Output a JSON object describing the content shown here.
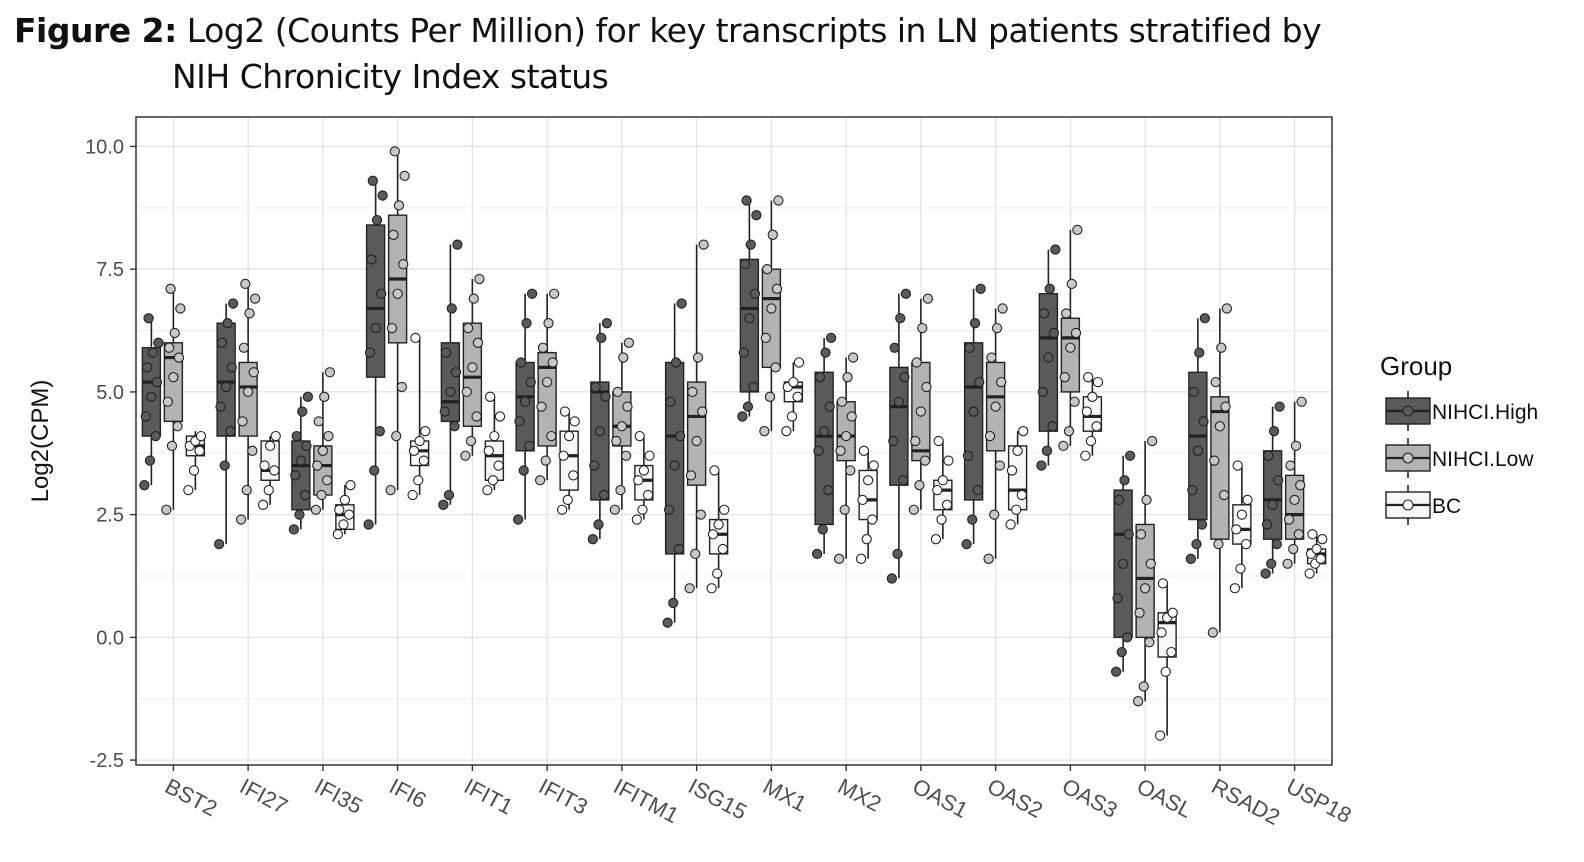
{
  "figure": {
    "label": "Figure 2:",
    "caption_line1": "Log2 (Counts Per Million) for key transcripts in LN patients stratified by",
    "caption_line2": "NIH Chronicity Index status"
  },
  "chart_data": {
    "type": "boxplot",
    "title": "Log2 (Counts Per Million) for key transcripts in LN patients stratified by NIH Chronicity Index status",
    "xlabel": "",
    "ylabel": "Log2(CPM)",
    "ylim": [
      -2.6,
      10.6
    ],
    "yticks": [
      -2.5,
      0.0,
      2.5,
      5.0,
      7.5,
      10.0
    ],
    "ytick_labels": [
      "-2.5",
      "0.0",
      "2.5",
      "5.0",
      "7.5",
      "10.0"
    ],
    "grid": true,
    "legend": {
      "title": "Group",
      "position": "right"
    },
    "groups": [
      {
        "name": "NIHCI.High",
        "fill": "#5a5a5a",
        "point_fill": "#5a5a5a"
      },
      {
        "name": "NIHCI.Low",
        "fill": "#b3b3b3",
        "point_fill": "#c8c8c8"
      },
      {
        "name": "BC",
        "fill": "#f7f7f7",
        "point_fill": "#ffffff"
      }
    ],
    "categories": [
      "BST2",
      "IFI27",
      "IFI35",
      "IFI6",
      "IFIT1",
      "IFIT3",
      "IFITM1",
      "ISG15",
      "MX1",
      "MX2",
      "OAS1",
      "OAS2",
      "OAS3",
      "OASL",
      "RSAD2",
      "USP18"
    ],
    "series": [
      {
        "name": "NIHCI.High",
        "boxes": [
          {
            "min": 3.1,
            "q1": 4.1,
            "median": 5.2,
            "q3": 5.9,
            "max": 6.5,
            "points": [
              3.1,
              3.6,
              4.1,
              4.5,
              4.9,
              5.2,
              5.5,
              5.8,
              6.0,
              6.5
            ]
          },
          {
            "min": 1.9,
            "q1": 4.1,
            "median": 5.2,
            "q3": 6.4,
            "max": 6.8,
            "points": [
              1.9,
              3.5,
              4.2,
              4.7,
              5.1,
              5.5,
              6.0,
              6.4,
              6.8
            ]
          },
          {
            "min": 2.2,
            "q1": 2.6,
            "median": 3.5,
            "q3": 4.0,
            "max": 4.9,
            "points": [
              2.2,
              2.5,
              2.9,
              3.3,
              3.6,
              3.9,
              4.1,
              4.6,
              4.9
            ]
          },
          {
            "min": 2.3,
            "q1": 5.3,
            "median": 6.7,
            "q3": 8.4,
            "max": 9.3,
            "points": [
              2.3,
              3.4,
              4.2,
              5.8,
              6.3,
              7.0,
              7.7,
              8.5,
              9.0,
              9.3
            ]
          },
          {
            "min": 2.7,
            "q1": 4.4,
            "median": 4.8,
            "q3": 6.0,
            "max": 8.0,
            "points": [
              2.7,
              2.9,
              4.3,
              4.6,
              5.0,
              5.4,
              5.8,
              6.7,
              8.0
            ]
          },
          {
            "min": 2.4,
            "q1": 3.8,
            "median": 4.9,
            "q3": 5.6,
            "max": 7.0,
            "points": [
              2.4,
              3.4,
              3.9,
              4.4,
              4.8,
              5.2,
              5.6,
              6.4,
              7.0
            ]
          },
          {
            "min": 2.0,
            "q1": 2.8,
            "median": 5.0,
            "q3": 5.2,
            "max": 6.4,
            "points": [
              2.0,
              2.3,
              2.9,
              3.5,
              4.2,
              4.9,
              5.1,
              6.1,
              6.4
            ]
          },
          {
            "min": 0.3,
            "q1": 1.7,
            "median": 4.1,
            "q3": 5.6,
            "max": 6.8,
            "points": [
              0.3,
              0.7,
              1.8,
              2.6,
              3.5,
              4.1,
              4.8,
              5.6,
              6.8
            ]
          },
          {
            "min": 4.5,
            "q1": 5.0,
            "median": 6.7,
            "q3": 7.7,
            "max": 8.9,
            "points": [
              4.5,
              4.7,
              5.1,
              5.8,
              6.5,
              7.0,
              7.6,
              8.0,
              8.6,
              8.9
            ]
          },
          {
            "min": 1.7,
            "q1": 2.3,
            "median": 4.1,
            "q3": 5.4,
            "max": 6.1,
            "points": [
              1.7,
              2.2,
              3.0,
              3.8,
              4.2,
              4.7,
              5.3,
              5.8,
              6.1
            ]
          },
          {
            "min": 1.2,
            "q1": 3.1,
            "median": 4.7,
            "q3": 5.5,
            "max": 7.0,
            "points": [
              1.2,
              1.7,
              3.2,
              4.0,
              4.8,
              5.3,
              5.9,
              6.5,
              7.0
            ]
          },
          {
            "min": 1.9,
            "q1": 2.8,
            "median": 5.1,
            "q3": 6.0,
            "max": 7.1,
            "points": [
              1.9,
              2.4,
              3.0,
              3.7,
              4.6,
              5.2,
              5.9,
              6.4,
              7.1
            ]
          },
          {
            "min": 3.5,
            "q1": 4.2,
            "median": 6.1,
            "q3": 7.0,
            "max": 7.9,
            "points": [
              3.5,
              3.8,
              4.3,
              5.0,
              5.7,
              6.2,
              6.6,
              7.1,
              7.9
            ]
          },
          {
            "min": -0.7,
            "q1": 0.0,
            "median": 2.1,
            "q3": 3.0,
            "max": 3.7,
            "points": [
              -0.7,
              -0.3,
              0.0,
              0.8,
              1.5,
              2.1,
              2.8,
              3.2,
              3.7
            ]
          },
          {
            "min": 1.6,
            "q1": 2.4,
            "median": 4.1,
            "q3": 5.4,
            "max": 6.5,
            "points": [
              1.6,
              1.9,
              2.3,
              3.0,
              3.8,
              4.4,
              5.0,
              5.8,
              6.5
            ]
          },
          {
            "min": 1.3,
            "q1": 2.0,
            "median": 2.8,
            "q3": 3.8,
            "max": 4.7,
            "points": [
              1.3,
              1.5,
              1.9,
              2.3,
              2.7,
              3.2,
              3.7,
              4.2,
              4.7
            ]
          }
        ]
      },
      {
        "name": "NIHCI.Low",
        "boxes": [
          {
            "min": 2.6,
            "q1": 4.4,
            "median": 5.7,
            "q3": 6.0,
            "max": 7.1,
            "points": [
              2.6,
              3.9,
              4.3,
              4.8,
              5.3,
              5.7,
              5.9,
              6.2,
              6.7,
              7.1
            ]
          },
          {
            "min": 2.4,
            "q1": 4.1,
            "median": 5.1,
            "q3": 5.6,
            "max": 7.2,
            "points": [
              2.4,
              3.0,
              3.8,
              4.4,
              5.0,
              5.4,
              5.9,
              6.6,
              6.9,
              7.2
            ]
          },
          {
            "min": 2.6,
            "q1": 2.9,
            "median": 3.5,
            "q3": 3.9,
            "max": 5.4,
            "points": [
              2.6,
              2.9,
              3.2,
              3.5,
              3.8,
              4.1,
              4.4,
              4.9,
              5.4
            ]
          },
          {
            "min": 3.0,
            "q1": 6.0,
            "median": 7.3,
            "q3": 8.6,
            "max": 9.9,
            "points": [
              3.0,
              4.1,
              5.1,
              6.3,
              7.0,
              7.6,
              8.2,
              8.8,
              9.4,
              9.9
            ]
          },
          {
            "min": 3.7,
            "q1": 4.3,
            "median": 5.3,
            "q3": 6.4,
            "max": 7.3,
            "points": [
              3.7,
              4.0,
              4.5,
              5.0,
              5.5,
              6.0,
              6.3,
              6.9,
              7.3
            ]
          },
          {
            "min": 3.2,
            "q1": 3.9,
            "median": 5.5,
            "q3": 5.8,
            "max": 7.0,
            "points": [
              3.2,
              3.6,
              4.1,
              4.7,
              5.2,
              5.6,
              5.9,
              6.4,
              7.0
            ]
          },
          {
            "min": 2.6,
            "q1": 3.9,
            "median": 4.3,
            "q3": 5.0,
            "max": 6.0,
            "points": [
              2.6,
              3.0,
              3.7,
              4.0,
              4.3,
              4.7,
              5.0,
              5.7,
              6.0
            ]
          },
          {
            "min": 1.0,
            "q1": 3.1,
            "median": 4.5,
            "q3": 5.2,
            "max": 8.0,
            "points": [
              1.0,
              1.7,
              2.5,
              3.3,
              4.0,
              4.6,
              5.0,
              5.7,
              8.0
            ]
          },
          {
            "min": 4.2,
            "q1": 5.5,
            "median": 6.9,
            "q3": 7.5,
            "max": 8.9,
            "points": [
              4.2,
              4.9,
              5.5,
              6.1,
              6.7,
              7.1,
              7.5,
              8.2,
              8.9
            ]
          },
          {
            "min": 1.6,
            "q1": 3.6,
            "median": 4.1,
            "q3": 4.8,
            "max": 5.7,
            "points": [
              1.6,
              2.6,
              3.4,
              3.8,
              4.1,
              4.5,
              4.8,
              5.3,
              5.7
            ]
          },
          {
            "min": 2.6,
            "q1": 3.6,
            "median": 3.8,
            "q3": 5.6,
            "max": 6.9,
            "points": [
              2.6,
              3.1,
              3.6,
              4.0,
              4.6,
              5.1,
              5.6,
              6.3,
              6.9
            ]
          },
          {
            "min": 1.6,
            "q1": 3.8,
            "median": 4.9,
            "q3": 5.6,
            "max": 6.7,
            "points": [
              1.6,
              2.5,
              3.5,
              4.1,
              4.7,
              5.2,
              5.7,
              6.3,
              6.7
            ]
          },
          {
            "min": 3.9,
            "q1": 5.0,
            "median": 6.1,
            "q3": 6.5,
            "max": 8.3,
            "points": [
              3.9,
              4.2,
              4.8,
              5.3,
              5.9,
              6.2,
              6.6,
              7.2,
              8.3
            ]
          },
          {
            "min": -1.3,
            "q1": 0.0,
            "median": 1.2,
            "q3": 2.3,
            "max": 4.0,
            "points": [
              -1.3,
              -1.0,
              -0.1,
              0.5,
              1.0,
              1.5,
              2.1,
              2.8,
              4.0
            ]
          },
          {
            "min": 0.1,
            "q1": 2.0,
            "median": 4.6,
            "q3": 4.9,
            "max": 6.7,
            "points": [
              0.1,
              1.9,
              2.9,
              3.6,
              4.3,
              4.7,
              5.2,
              5.9,
              6.7
            ]
          },
          {
            "min": 1.5,
            "q1": 2.0,
            "median": 2.5,
            "q3": 3.3,
            "max": 4.8,
            "points": [
              1.5,
              1.8,
              2.1,
              2.4,
              2.8,
              3.1,
              3.5,
              3.9,
              4.8
            ]
          }
        ]
      },
      {
        "name": "BC",
        "boxes": [
          {
            "min": 3.0,
            "q1": 3.7,
            "median": 3.9,
            "q3": 4.1,
            "max": 4.2,
            "points": [
              3.0,
              3.4,
              3.8,
              3.9,
              4.0,
              4.1
            ]
          },
          {
            "min": 2.7,
            "q1": 3.2,
            "median": 3.4,
            "q3": 4.0,
            "max": 4.1,
            "points": [
              2.7,
              3.0,
              3.4,
              3.5,
              3.9,
              4.1
            ]
          },
          {
            "min": 2.1,
            "q1": 2.2,
            "median": 2.5,
            "q3": 2.7,
            "max": 3.1,
            "points": [
              2.1,
              2.3,
              2.5,
              2.6,
              2.8,
              3.1
            ]
          },
          {
            "min": 2.9,
            "q1": 3.5,
            "median": 3.8,
            "q3": 4.0,
            "max": 6.1,
            "points": [
              2.9,
              3.2,
              3.6,
              3.8,
              4.0,
              4.2,
              6.1
            ]
          },
          {
            "min": 3.0,
            "q1": 3.2,
            "median": 3.7,
            "q3": 4.0,
            "max": 4.9,
            "points": [
              3.0,
              3.2,
              3.5,
              3.8,
              4.1,
              4.5,
              4.9
            ]
          },
          {
            "min": 2.6,
            "q1": 3.0,
            "median": 3.7,
            "q3": 4.2,
            "max": 4.6,
            "points": [
              2.6,
              2.8,
              3.3,
              3.7,
              4.1,
              4.4,
              4.6
            ]
          },
          {
            "min": 2.4,
            "q1": 2.8,
            "median": 3.2,
            "q3": 3.5,
            "max": 4.1,
            "points": [
              2.4,
              2.6,
              2.9,
              3.2,
              3.4,
              3.7,
              4.1
            ]
          },
          {
            "min": 1.0,
            "q1": 1.7,
            "median": 2.1,
            "q3": 2.4,
            "max": 3.4,
            "points": [
              1.0,
              1.3,
              1.8,
              2.1,
              2.3,
              2.6,
              3.4
            ]
          },
          {
            "min": 4.2,
            "q1": 4.8,
            "median": 5.1,
            "q3": 5.2,
            "max": 5.6,
            "points": [
              4.2,
              4.5,
              4.9,
              5.1,
              5.2,
              5.6
            ]
          },
          {
            "min": 1.6,
            "q1": 2.4,
            "median": 2.8,
            "q3": 3.4,
            "max": 3.8,
            "points": [
              1.6,
              2.0,
              2.4,
              2.8,
              3.2,
              3.5,
              3.8
            ]
          },
          {
            "min": 2.0,
            "q1": 2.6,
            "median": 3.0,
            "q3": 3.2,
            "max": 4.0,
            "points": [
              2.0,
              2.4,
              2.7,
              3.0,
              3.2,
              3.6,
              4.0
            ]
          },
          {
            "min": 2.3,
            "q1": 2.6,
            "median": 3.0,
            "q3": 3.9,
            "max": 4.2,
            "points": [
              2.3,
              2.6,
              2.9,
              3.4,
              3.8,
              4.2
            ]
          },
          {
            "min": 3.7,
            "q1": 4.2,
            "median": 4.5,
            "q3": 4.9,
            "max": 5.3,
            "points": [
              3.7,
              4.0,
              4.3,
              4.6,
              4.9,
              5.2,
              5.3
            ]
          },
          {
            "min": -2.0,
            "q1": -0.4,
            "median": 0.3,
            "q3": 0.5,
            "max": 1.1,
            "points": [
              -2.0,
              -0.7,
              -0.3,
              0.1,
              0.4,
              0.5,
              1.1
            ]
          },
          {
            "min": 1.0,
            "q1": 1.9,
            "median": 2.2,
            "q3": 2.7,
            "max": 3.5,
            "points": [
              1.0,
              1.4,
              1.9,
              2.2,
              2.5,
              2.8,
              3.5
            ]
          },
          {
            "min": 1.3,
            "q1": 1.5,
            "median": 1.7,
            "q3": 1.8,
            "max": 2.1,
            "points": [
              1.3,
              1.5,
              1.6,
              1.7,
              1.8,
              2.0,
              2.1
            ]
          }
        ]
      }
    ]
  }
}
